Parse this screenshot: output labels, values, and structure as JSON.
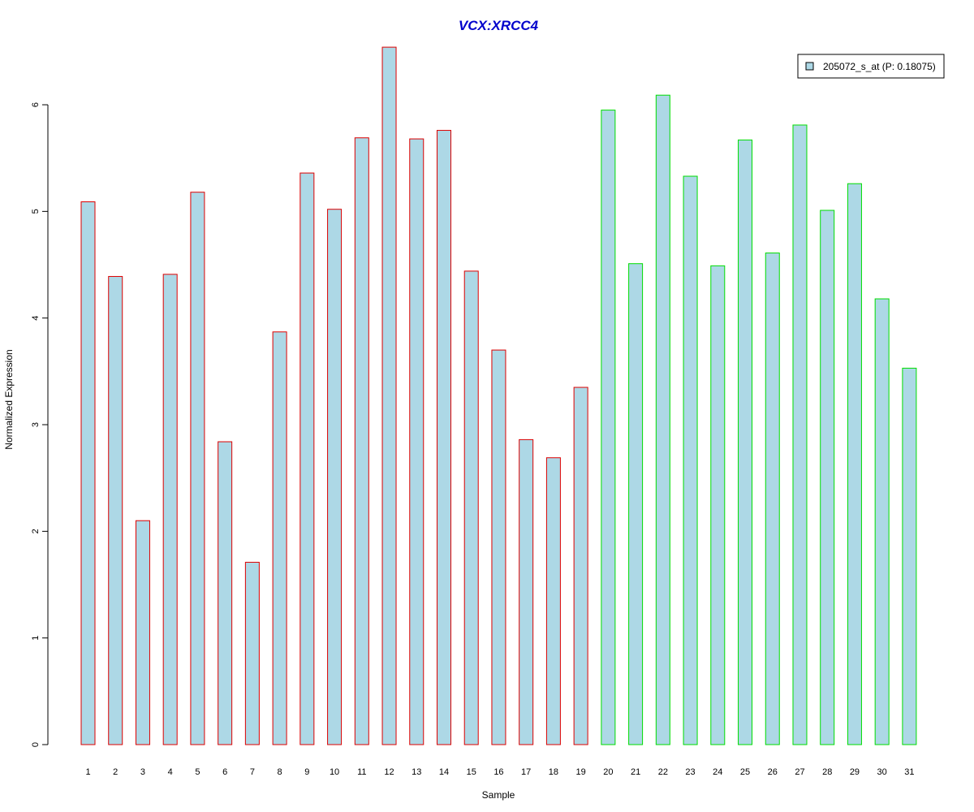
{
  "chart_data": {
    "type": "bar",
    "title": "VCX:XRCC4",
    "title_color": "#0000CC",
    "xlabel": "Sample",
    "ylabel": "Normalized Expression",
    "ylim": [
      0,
      6.55
    ],
    "yticks": [
      0,
      1,
      2,
      3,
      4,
      5,
      6
    ],
    "categories": [
      "1",
      "2",
      "3",
      "4",
      "5",
      "6",
      "7",
      "8",
      "9",
      "10",
      "11",
      "12",
      "13",
      "14",
      "15",
      "16",
      "17",
      "18",
      "19",
      "20",
      "21",
      "22",
      "23",
      "24",
      "25",
      "26",
      "27",
      "28",
      "29",
      "30",
      "31"
    ],
    "series": [
      {
        "name": "205072_s_at (P: 0.18075)",
        "fill": "#ADD8E6",
        "values": [
          5.09,
          4.39,
          2.1,
          4.41,
          5.18,
          2.84,
          1.71,
          3.87,
          5.36,
          5.02,
          5.69,
          6.54,
          5.68,
          5.76,
          4.44,
          3.7,
          2.86,
          2.69,
          3.35,
          5.95,
          4.51,
          6.09,
          5.33,
          4.49,
          5.67,
          4.61,
          5.81,
          5.01,
          5.26,
          4.18,
          3.53
        ]
      }
    ],
    "group_colors": [
      "#DD0000",
      "#DD0000",
      "#DD0000",
      "#DD0000",
      "#DD0000",
      "#DD0000",
      "#DD0000",
      "#DD0000",
      "#DD0000",
      "#DD0000",
      "#DD0000",
      "#DD0000",
      "#DD0000",
      "#DD0000",
      "#DD0000",
      "#DD0000",
      "#DD0000",
      "#DD0000",
      "#DD0000",
      "#00DD00",
      "#00DD00",
      "#00DD00",
      "#00DD00",
      "#00DD00",
      "#00DD00",
      "#00DD00",
      "#00DD00",
      "#00DD00",
      "#00DD00",
      "#00DD00",
      "#00DD00"
    ],
    "grid": false,
    "legend_position": "top-right"
  }
}
